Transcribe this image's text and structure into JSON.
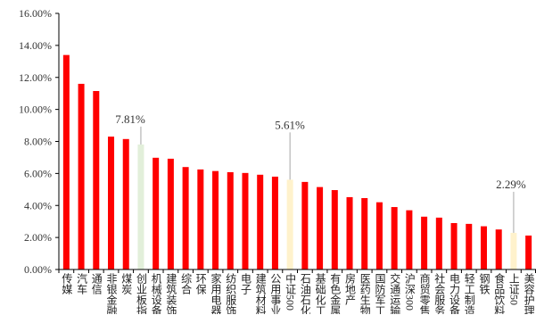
{
  "chart_data": {
    "type": "bar",
    "categories": [
      "传媒",
      "汽车",
      "通信",
      "非银金融",
      "煤炭",
      "创业板指",
      "机械设备",
      "建筑装饰",
      "综合",
      "环保",
      "家用电器",
      "纺织服饰",
      "电子",
      "建筑材料",
      "公用事业",
      "中证500",
      "石油石化",
      "基础化工",
      "有色金属",
      "房地产",
      "医药生物",
      "国防军工",
      "交通运输",
      "沪深300",
      "商贸零售",
      "社会服务",
      "电力设备",
      "轻工制造",
      "钢铁",
      "食品饮料",
      "上证50",
      "美容护理"
    ],
    "values": [
      13.4,
      11.6,
      11.15,
      8.3,
      8.15,
      7.81,
      6.98,
      6.92,
      6.4,
      6.25,
      6.15,
      6.08,
      6.03,
      5.92,
      5.8,
      5.61,
      5.47,
      5.15,
      4.96,
      4.52,
      4.46,
      4.2,
      3.9,
      3.7,
      3.3,
      3.24,
      2.9,
      2.85,
      2.7,
      2.5,
      2.29,
      2.12
    ],
    "ylim": [
      0,
      16
    ],
    "yticks": [
      0,
      2,
      4,
      6,
      8,
      10,
      12,
      14,
      16
    ],
    "ytick_labels": [
      "0.00%",
      "2.00%",
      "4.00%",
      "6.00%",
      "8.00%",
      "10.00%",
      "12.00%",
      "14.00%",
      "16.00%"
    ],
    "bar_color": "#FF0000",
    "highlights": [
      {
        "index": 5,
        "color": "#E2EFDA"
      },
      {
        "index": 15,
        "color": "#FFF2CC"
      },
      {
        "index": 30,
        "color": "#FFF2CC"
      }
    ],
    "annotations": [
      {
        "index": 5,
        "text": "7.81%"
      },
      {
        "index": 15,
        "text": "5.61%"
      },
      {
        "index": 30,
        "text": "2.29%"
      }
    ],
    "axis_color": "#000000",
    "leader_color": "#A6A6A6",
    "grid": false
  }
}
